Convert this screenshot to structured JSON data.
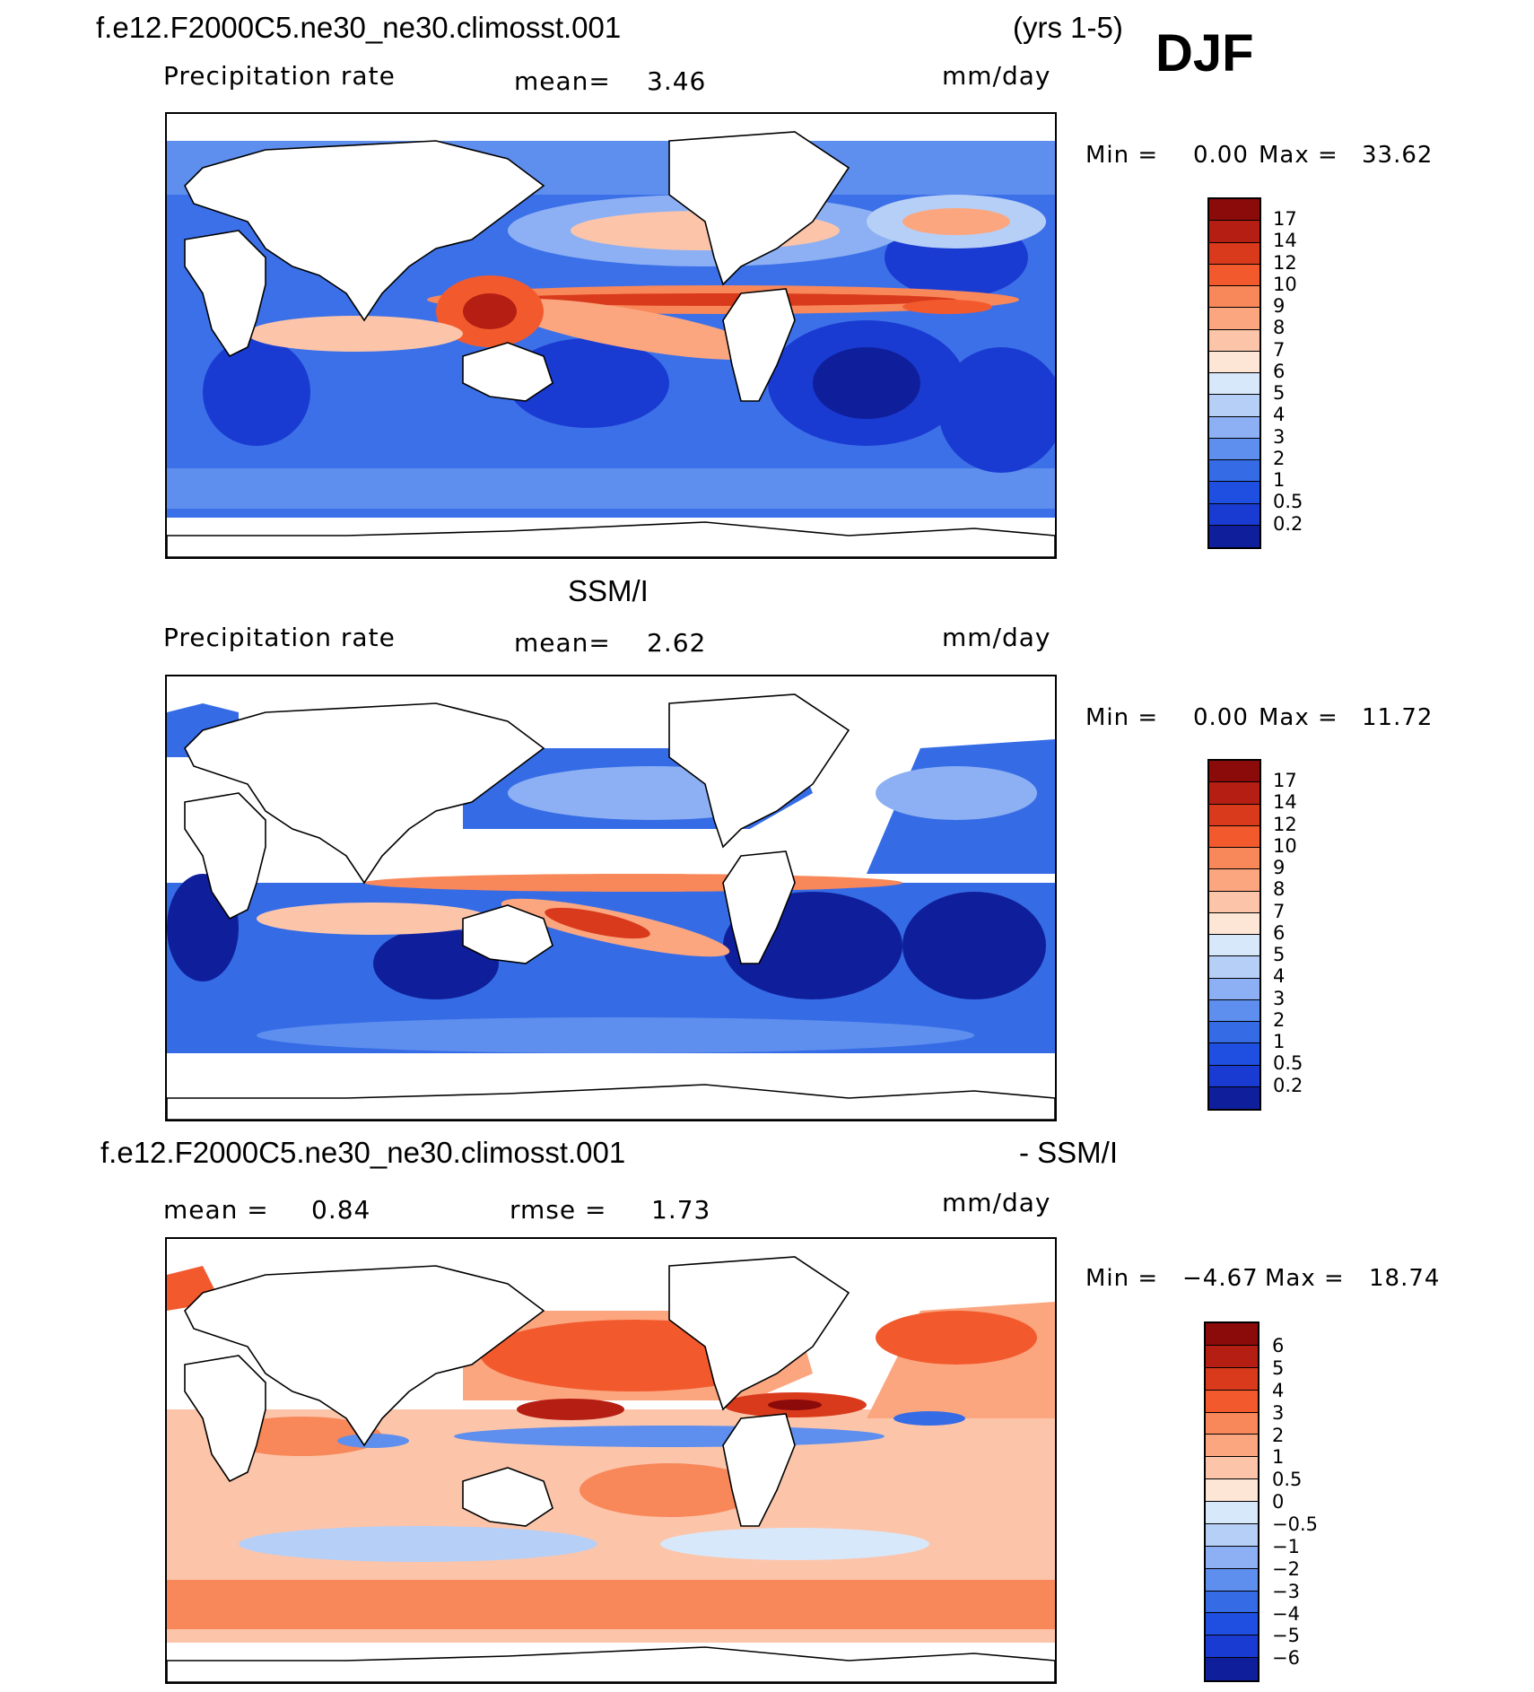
{
  "header": {
    "case_name": "f.e12.F2000C5.ne30_ne30.climosst.001",
    "years": "(yrs 1-5)",
    "season": "DJF"
  },
  "panels": [
    {
      "id": "model",
      "title": "",
      "variable": "Precipitation rate",
      "stat1_label": "mean=",
      "stat1_value": "3.46",
      "units": "mm/day",
      "min_label": "Min =",
      "min_value": "0.00",
      "max_label": "Max =",
      "max_value": "33.62",
      "colorbar": {
        "levels": [
          "17",
          "14",
          "12",
          "10",
          "9",
          "8",
          "7",
          "6",
          "5",
          "4",
          "3",
          "2",
          "1",
          "0.5",
          "0.2"
        ],
        "colors": [
          "#8b0a0a",
          "#b51e12",
          "#d93a1c",
          "#f25a2e",
          "#f8885a",
          "#fba67f",
          "#fcc5aa",
          "#fde6d6",
          "#d8e8fb",
          "#b6cff7",
          "#8cb0f3",
          "#5e8eee",
          "#356ce6",
          "#1f4fe0",
          "#1a3bd2",
          "#0f1f9c"
        ]
      }
    },
    {
      "id": "obs",
      "title": "SSM/I",
      "variable": "Precipitation rate",
      "stat1_label": "mean=",
      "stat1_value": "2.62",
      "units": "mm/day",
      "min_label": "Min =",
      "min_value": "0.00",
      "max_label": "Max =",
      "max_value": "11.72",
      "colorbar": {
        "levels": [
          "17",
          "14",
          "12",
          "10",
          "9",
          "8",
          "7",
          "6",
          "5",
          "4",
          "3",
          "2",
          "1",
          "0.5",
          "0.2"
        ],
        "colors": [
          "#8b0a0a",
          "#b51e12",
          "#d93a1c",
          "#f25a2e",
          "#f8885a",
          "#fba67f",
          "#fcc5aa",
          "#fde6d6",
          "#d8e8fb",
          "#b6cff7",
          "#8cb0f3",
          "#5e8eee",
          "#356ce6",
          "#1f4fe0",
          "#1a3bd2",
          "#0f1f9c"
        ]
      }
    },
    {
      "id": "diff",
      "title_left": "f.e12.F2000C5.ne30_ne30.climosst.001",
      "title_right": "- SSM/I",
      "stat1_label": "mean =",
      "stat1_value": "0.84",
      "stat2_label": "rmse =",
      "stat2_value": "1.73",
      "units": "mm/day",
      "min_label": "Min =",
      "min_value": "−4.67",
      "max_label": "Max =",
      "max_value": "18.74",
      "colorbar": {
        "levels": [
          "6",
          "5",
          "4",
          "3",
          "2",
          "1",
          "0.5",
          "0",
          "−0.5",
          "−1",
          "−2",
          "−3",
          "−4",
          "−5",
          "−6"
        ],
        "colors": [
          "#8b0a0a",
          "#b51e12",
          "#d93a1c",
          "#f25a2e",
          "#f8885a",
          "#fba67f",
          "#fcc5aa",
          "#fde6d6",
          "#d8e8fb",
          "#b6cff7",
          "#8cb0f3",
          "#5e8eee",
          "#356ce6",
          "#1f4fe0",
          "#1a3bd2",
          "#0f1f9c"
        ]
      }
    }
  ]
}
